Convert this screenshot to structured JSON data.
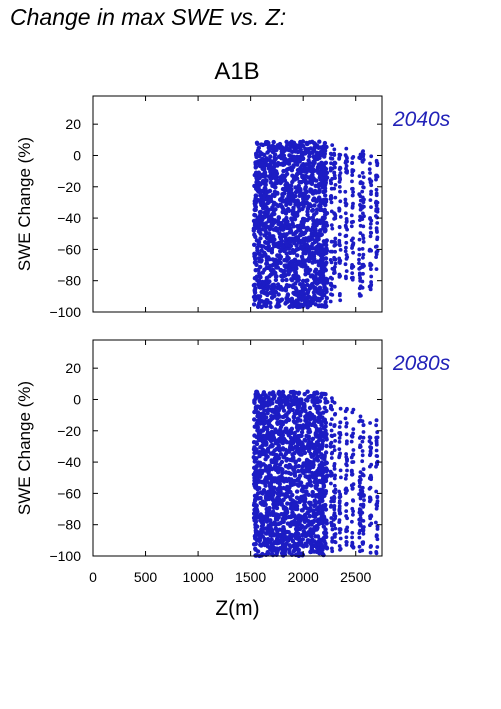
{
  "heading": "Change in max SWE vs. Z:",
  "scenario": "A1B",
  "color_points": "#1c1cc4",
  "color_period_label": "#2222b8",
  "chart_data": [
    {
      "type": "scatter",
      "period_label": "2040s",
      "ylabel": "SWE Change (%)",
      "xlabel": "",
      "xlim": [
        0,
        2750
      ],
      "ylim": [
        -100,
        38
      ],
      "x_ticks": [
        0,
        500,
        1000,
        1500,
        2000,
        2500
      ],
      "y_ticks": [
        20,
        0,
        -20,
        -40,
        -60,
        -80,
        -100
      ],
      "dense_block": {
        "x_range": [
          1530,
          2230
        ],
        "y_range": [
          -97,
          9
        ]
      },
      "columns": [
        {
          "x": 2270,
          "y_range": [
            -95,
            7
          ]
        },
        {
          "x": 2300,
          "y_range": [
            -87,
            5
          ]
        },
        {
          "x": 2350,
          "y_range": [
            -93,
            4
          ]
        },
        {
          "x": 2410,
          "y_range": [
            -81,
            5
          ]
        },
        {
          "x": 2470,
          "y_range": [
            -82,
            2
          ]
        },
        {
          "x": 2540,
          "y_range": [
            -95,
            1
          ]
        },
        {
          "x": 2570,
          "y_range": [
            -85,
            3
          ]
        },
        {
          "x": 2640,
          "y_range": [
            -88,
            0
          ]
        },
        {
          "x": 2700,
          "y_range": [
            -84,
            -2
          ]
        }
      ]
    },
    {
      "type": "scatter",
      "period_label": "2080s",
      "ylabel": "SWE Change (%)",
      "xlabel": "Z(m)",
      "xlim": [
        0,
        2750
      ],
      "ylim": [
        -100,
        38
      ],
      "x_ticks": [
        0,
        500,
        1000,
        1500,
        2000,
        2500
      ],
      "y_ticks": [
        20,
        0,
        -20,
        -40,
        -60,
        -80,
        -100
      ],
      "dense_block": {
        "x_range": [
          1530,
          2230
        ],
        "y_range": [
          -100,
          5
        ]
      },
      "columns": [
        {
          "x": 2270,
          "y_range": [
            -98,
            2
          ]
        },
        {
          "x": 2300,
          "y_range": [
            -95,
            0
          ]
        },
        {
          "x": 2350,
          "y_range": [
            -97,
            -2
          ]
        },
        {
          "x": 2410,
          "y_range": [
            -96,
            -3
          ]
        },
        {
          "x": 2470,
          "y_range": [
            -97,
            -5
          ]
        },
        {
          "x": 2540,
          "y_range": [
            -99,
            -10
          ]
        },
        {
          "x": 2570,
          "y_range": [
            -98,
            -12
          ]
        },
        {
          "x": 2640,
          "y_range": [
            -99,
            -15
          ]
        },
        {
          "x": 2700,
          "y_range": [
            -100,
            -8
          ]
        }
      ]
    }
  ]
}
